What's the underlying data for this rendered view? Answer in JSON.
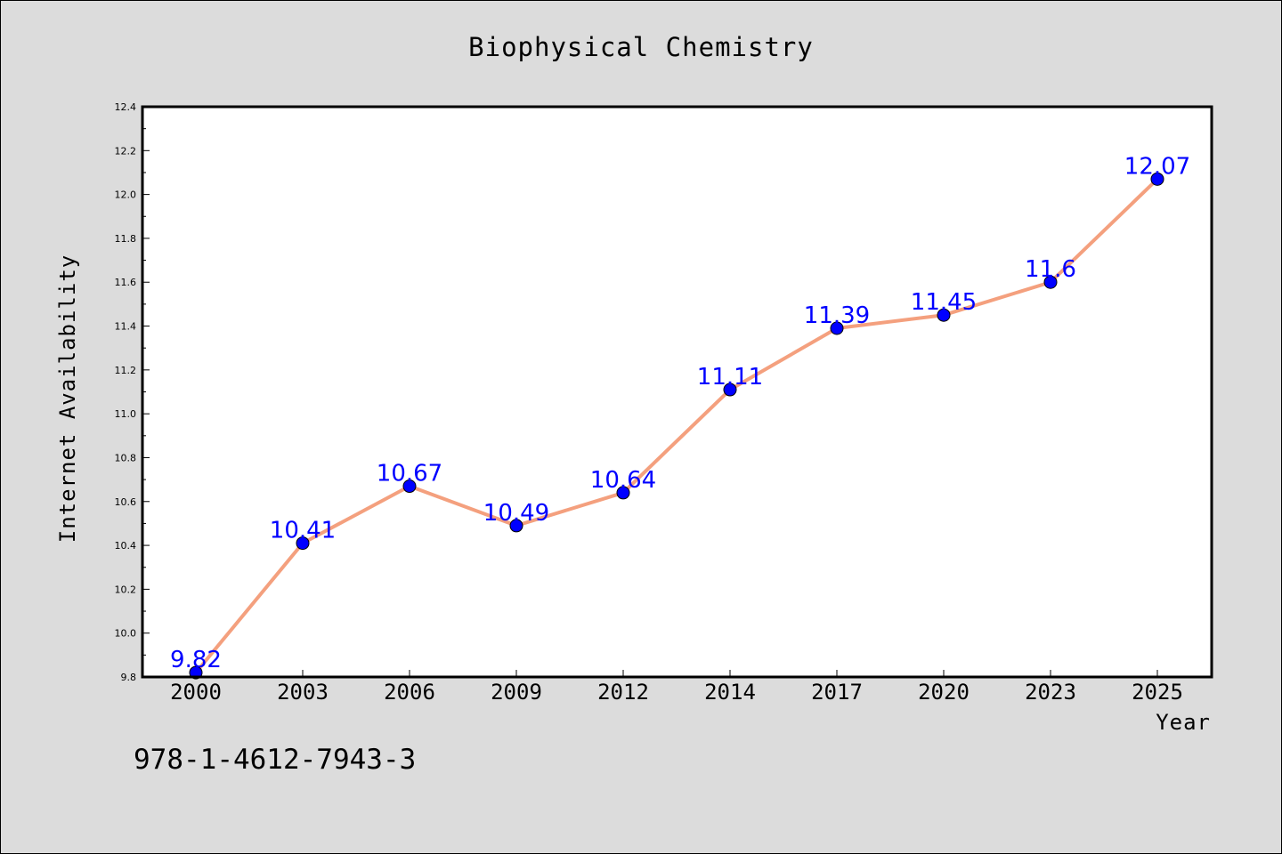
{
  "chart_data": {
    "type": "line",
    "title": "Biophysical Chemistry",
    "xlabel": "Year",
    "ylabel": "Internet Availability",
    "categories": [
      "2000",
      "2003",
      "2006",
      "2009",
      "2012",
      "2014",
      "2017",
      "2020",
      "2023",
      "2025"
    ],
    "series": [
      {
        "values": [
          9.82,
          10.41,
          10.67,
          10.49,
          10.64,
          11.11,
          11.39,
          11.45,
          11.6,
          12.07
        ],
        "data_labels": [
          "9.82",
          "10.41",
          "10.67",
          "10.49",
          "10.64",
          "11.11",
          "11.39",
          "11.45",
          "11.6",
          "12.07"
        ],
        "line_color": "#f4a07e",
        "marker_color": "#0000ff"
      }
    ],
    "ylim": [
      9.8,
      12.4
    ],
    "yticks": [
      "9.8",
      "10.0",
      "10.2",
      "10.4",
      "10.6",
      "10.8",
      "11.0",
      "11.2",
      "11.4",
      "11.6",
      "11.8",
      "12.0",
      "12.2",
      "12.4"
    ],
    "grid": false,
    "legend": false
  },
  "footer": {
    "isbn": "978-1-4612-7943-3"
  },
  "colors": {
    "background": "#dcdcdc",
    "plot_background": "#ffffff",
    "line": "#f4a07e",
    "marker": "#0000ff",
    "data_label": "#0000ff"
  }
}
